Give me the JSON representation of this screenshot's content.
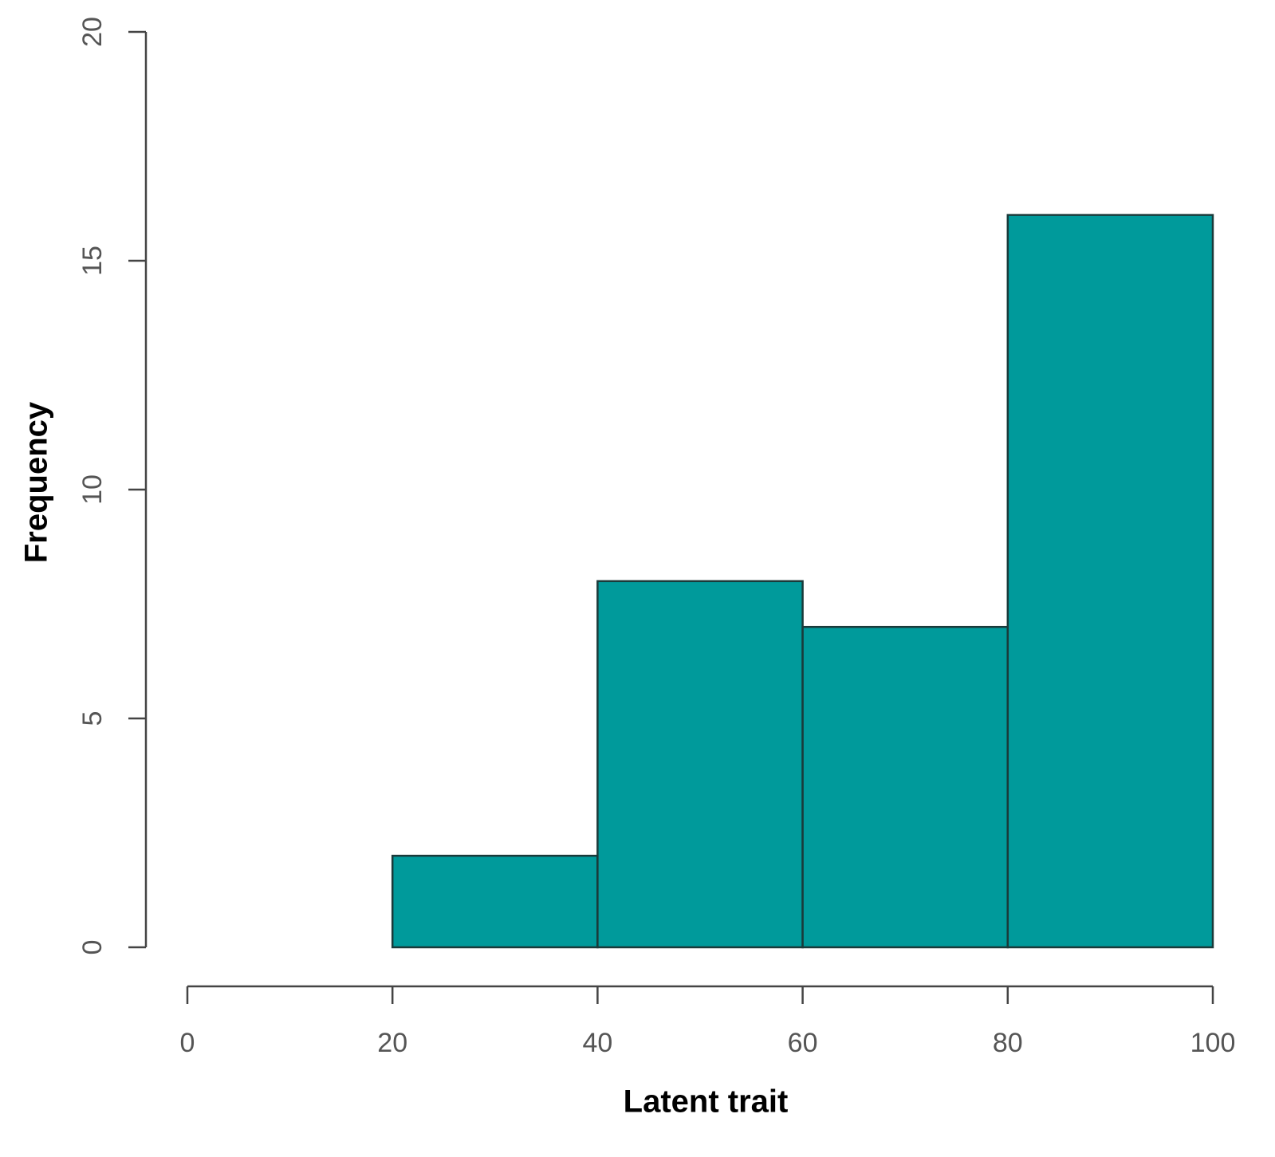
{
  "chart_data": {
    "type": "histogram",
    "xlabel": "Latent trait",
    "ylabel": "Frequency",
    "bins": [
      20,
      40,
      60,
      80,
      100
    ],
    "counts": [
      2,
      8,
      7,
      16
    ],
    "color": "#009a9b",
    "xlim": [
      0,
      100
    ],
    "xticks": [
      0,
      20,
      40,
      60,
      80,
      100
    ],
    "ylim": [
      0,
      20
    ],
    "yticks": [
      0,
      5,
      10,
      15,
      20
    ]
  }
}
